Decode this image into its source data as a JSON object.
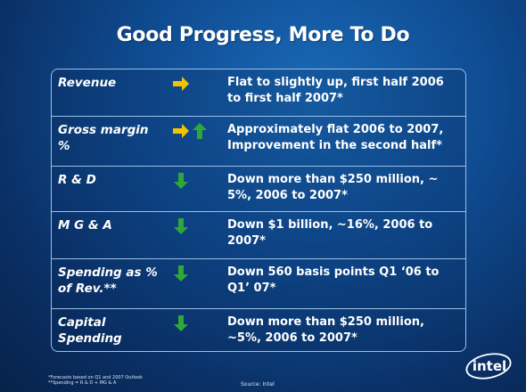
{
  "title": "Good Progress, More To Do",
  "rows": [
    {
      "label": "Revenue",
      "icons": [
        "arrow-right"
      ],
      "desc": "Flat to slightly up, first half 2006 to first half 2007*"
    },
    {
      "label": "Gross margin %",
      "icons": [
        "arrow-right",
        "arrow-up"
      ],
      "desc": "Approximately flat 2006 to 2007, Improvement in the second half*"
    },
    {
      "label": "R & D",
      "icons": [
        "arrow-down"
      ],
      "desc": "Down more than $250 million, ~ 5%, 2006 to 2007*"
    },
    {
      "label": "M G & A",
      "icons": [
        "arrow-down"
      ],
      "desc": "Down $1 billion, ~16%, 2006 to 2007*"
    },
    {
      "label": "Spending as % of Rev.**",
      "icons": [
        "arrow-down"
      ],
      "desc": "Down 560 basis points Q1 ‘06 to Q1’ 07*"
    },
    {
      "label": "Capital Spending",
      "icons": [
        "arrow-down"
      ],
      "desc": "Down more than $250 million, ~5%, 2006 to 2007*"
    }
  ],
  "footnotes": {
    "line1": "*Forecasts based on Q1 and 2007 Outlook",
    "line2": "**Spending = R & D + MG & A"
  },
  "source": "Source: Intel",
  "logo_text": "intel",
  "colors": {
    "arrow_right": "#f2c400",
    "arrow_up_down": "#2fa838",
    "border": "#9cc0e6"
  }
}
